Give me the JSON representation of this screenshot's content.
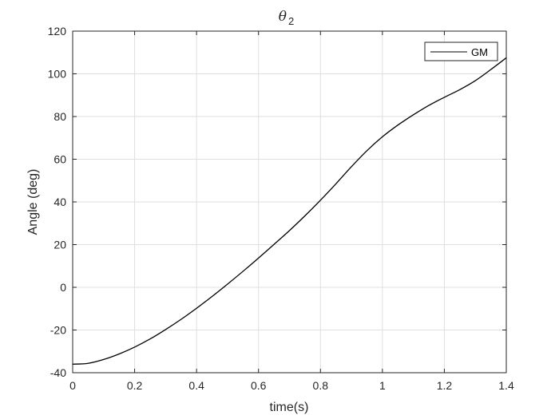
{
  "chart_data": {
    "type": "line",
    "title": "θ",
    "title_subscript": "2",
    "xlabel": "time(s)",
    "ylabel": "Angle (deg)",
    "xlim": [
      0,
      1.4
    ],
    "ylim": [
      -40,
      120
    ],
    "xticks": [
      0,
      0.2,
      0.4,
      0.6,
      0.8,
      1,
      1.2,
      1.4
    ],
    "xtick_labels": [
      "0",
      "0.2",
      "0.4",
      "0.6",
      "0.8",
      "1",
      "1.2",
      "1.4"
    ],
    "yticks": [
      -40,
      -20,
      0,
      20,
      40,
      60,
      80,
      100,
      120
    ],
    "ytick_labels": [
      "-40",
      "-20",
      "0",
      "20",
      "40",
      "60",
      "80",
      "100",
      "120"
    ],
    "grid": true,
    "legend_location": "top-right",
    "series": [
      {
        "name": "GM",
        "color": "#000000",
        "x": [
          0,
          0.05,
          0.1,
          0.15,
          0.2,
          0.25,
          0.3,
          0.35,
          0.4,
          0.45,
          0.5,
          0.55,
          0.6,
          0.65,
          0.7,
          0.75,
          0.8,
          0.85,
          0.9,
          0.95,
          1.0,
          1.05,
          1.1,
          1.15,
          1.2,
          1.25,
          1.3,
          1.35,
          1.4
        ],
        "y": [
          -36,
          -35.6,
          -33.8,
          -31.2,
          -28,
          -24.2,
          -19.8,
          -15,
          -9.8,
          -4.3,
          1.5,
          7.5,
          13.7,
          20.1,
          26.6,
          33.5,
          40.8,
          48.5,
          56.5,
          64,
          70.5,
          76,
          80.8,
          85.2,
          89,
          92.6,
          96.8,
          102,
          107.5
        ]
      }
    ]
  }
}
